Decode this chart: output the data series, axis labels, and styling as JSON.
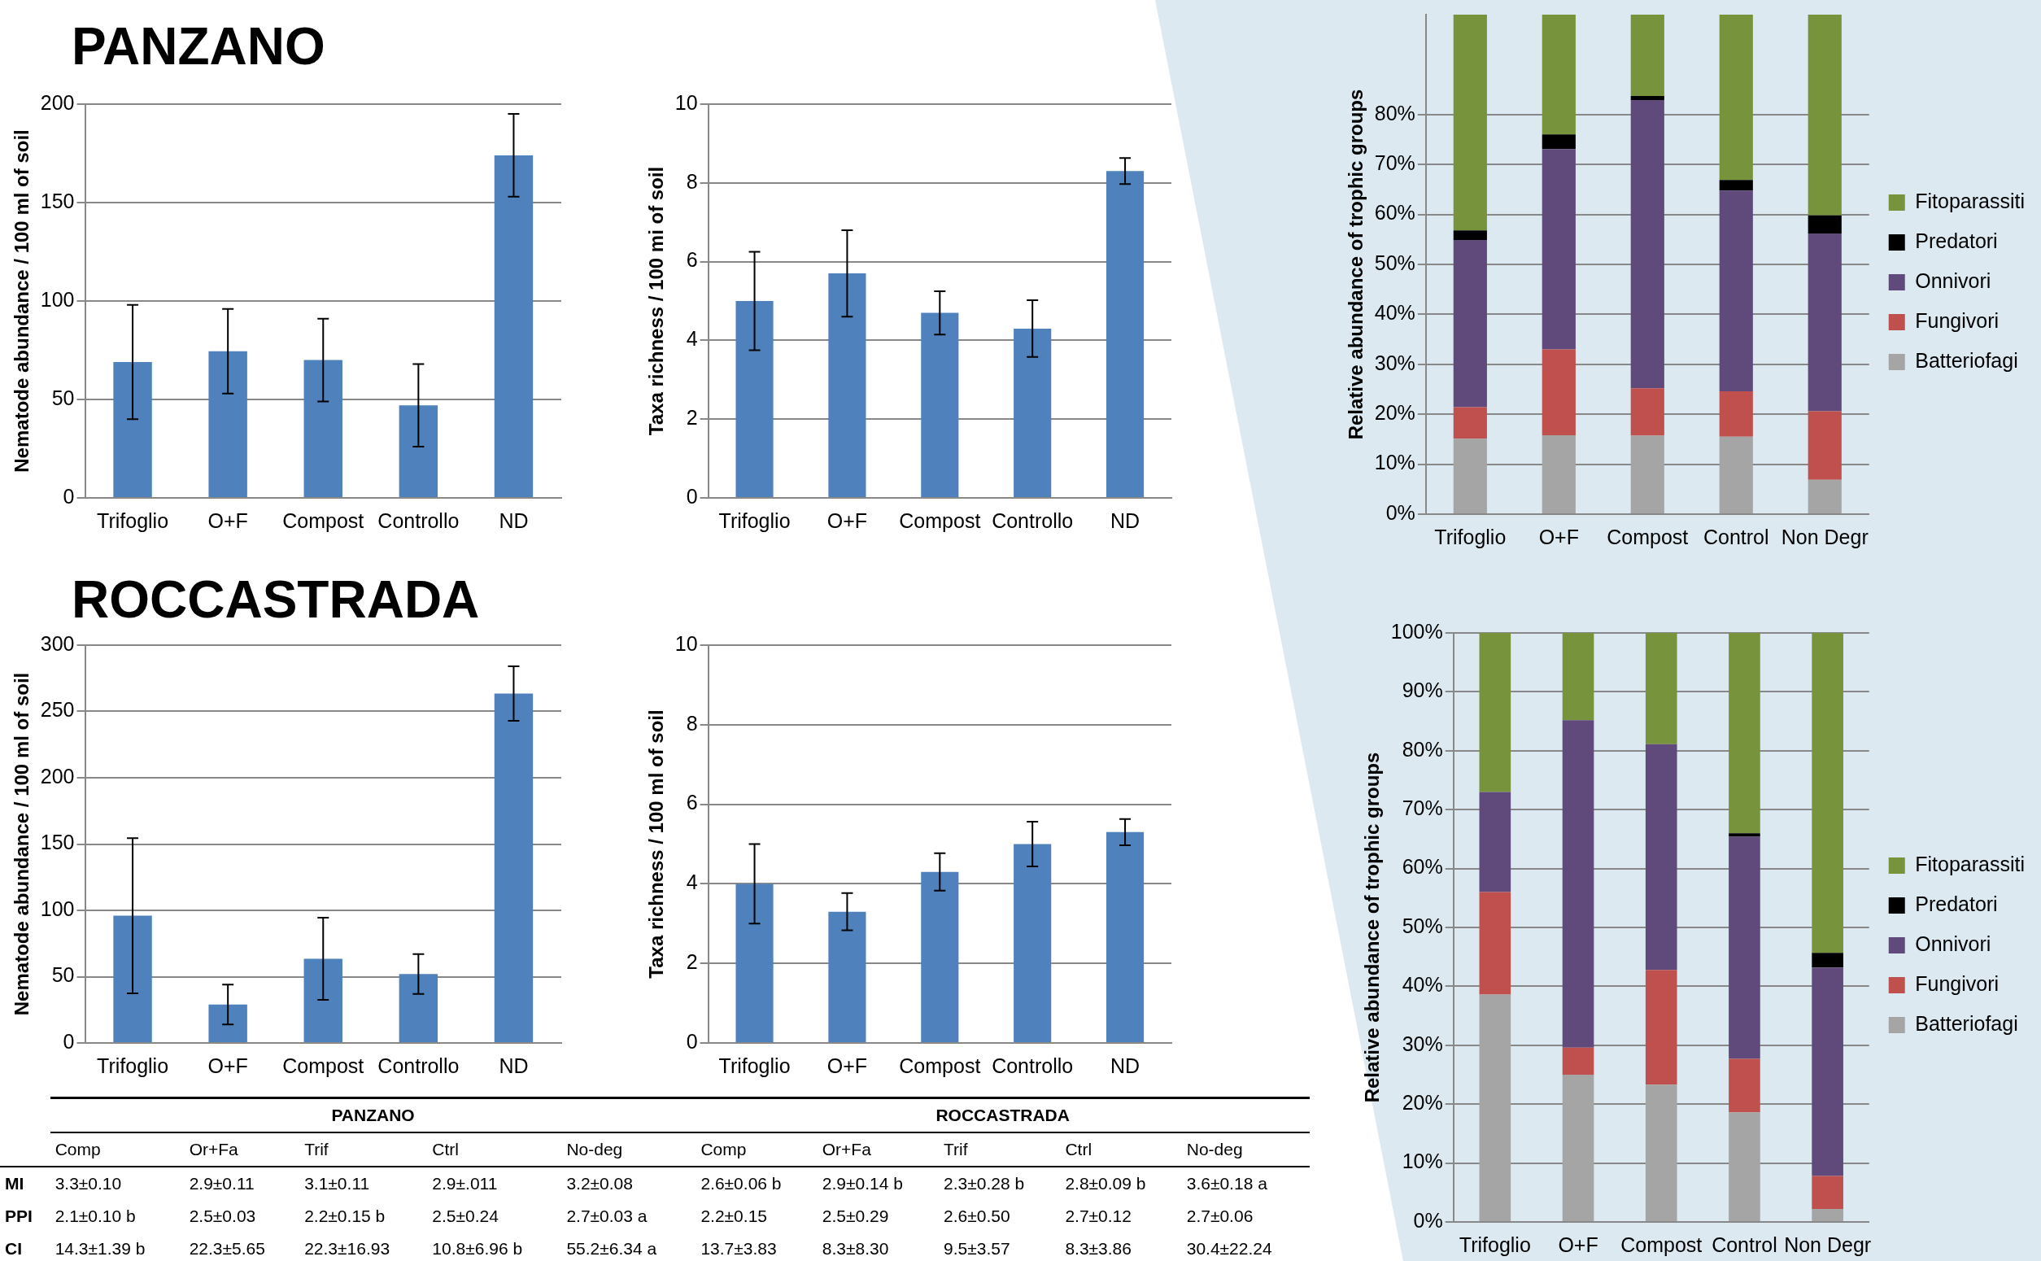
{
  "chart_data": [
    {
      "type": "bar",
      "title": "PANZANO",
      "ylabel": "Nematode abundance / 100 ml of soil",
      "categories": [
        "Trifoglio",
        "O+F",
        "Compost",
        "Controllo",
        "ND"
      ],
      "values": [
        69,
        74.5,
        70,
        47,
        174
      ],
      "errors": [
        29,
        21.5,
        21,
        21,
        21
      ],
      "color": "#4f81bd",
      "ylim": [
        0,
        200
      ],
      "yticks": [
        0,
        50,
        100,
        150,
        200
      ],
      "grid": "y",
      "legend": false
    },
    {
      "type": "bar",
      "ylabel": "Taxa richness / 100 mi of soil",
      "categories": [
        "Trifoglio",
        "O+F",
        "Compost",
        "Controllo",
        "ND"
      ],
      "values": [
        5.0,
        5.7,
        4.7,
        4.3,
        8.3
      ],
      "errors": [
        1.25,
        1.1,
        0.55,
        0.72,
        0.33
      ],
      "color": "#4f81bd",
      "ylim": [
        0,
        10
      ],
      "yticks": [
        0,
        2,
        4,
        6,
        8,
        10
      ],
      "grid": "y",
      "legend": false
    },
    {
      "type": "bar",
      "ylabel": "Relative abundance of trophic groups",
      "categories": [
        "Trifoglio",
        "O+F",
        "Compost",
        "Control",
        "Non Degr"
      ],
      "stacked": true,
      "series": [
        {
          "name": "Batteriofagi",
          "color": "#a5a5a5",
          "values": [
            15.1,
            15.8,
            15.7,
            15.5,
            6.9
          ]
        },
        {
          "name": "Fungivori",
          "color": "#c0504d",
          "values": [
            6.3,
            17.2,
            9.5,
            9.1,
            13.7
          ]
        },
        {
          "name": "Onnivori",
          "color": "#604a7b",
          "values": [
            33.5,
            40.1,
            57.7,
            40.2,
            35.6
          ]
        },
        {
          "name": "Predatori",
          "color": "#000000",
          "values": [
            1.9,
            2.9,
            0.8,
            2.1,
            3.6
          ]
        },
        {
          "name": "Fitoparassiti",
          "color": "#77933c",
          "values": [
            43.2,
            24.0,
            16.3,
            33.1,
            40.2
          ]
        }
      ],
      "ylim": [
        0,
        100
      ],
      "yticks": [
        {
          "value": 0,
          "label": "0%"
        },
        {
          "value": 10,
          "label": "10%"
        },
        {
          "value": 20,
          "label": "20%"
        },
        {
          "value": 30,
          "label": "30%"
        },
        {
          "value": 40,
          "label": "40%"
        },
        {
          "value": 50,
          "label": "50%"
        },
        {
          "value": 60,
          "label": "60%"
        },
        {
          "value": 70,
          "label": "70%"
        },
        {
          "value": 80,
          "label": "80%"
        }
      ],
      "grid": "y",
      "legend": "right"
    },
    {
      "type": "bar",
      "title": "ROCCASTRADA",
      "ylabel": "Nematode abundance / 100 ml of soil",
      "categories": [
        "Trifoglio",
        "O+F",
        "Compost",
        "Controllo",
        "ND"
      ],
      "values": [
        96,
        29,
        63.5,
        52,
        263.5
      ],
      "errors": [
        58.5,
        15,
        31,
        15,
        20.5
      ],
      "color": "#4f81bd",
      "ylim": [
        0,
        300
      ],
      "yticks": [
        0,
        50,
        100,
        150,
        200,
        250,
        300
      ],
      "grid": "y",
      "legend": false
    },
    {
      "type": "bar",
      "ylabel": "Taxa richness / 100 ml of soil",
      "categories": [
        "Trifoglio",
        "O+F",
        "Compost",
        "Controllo",
        "ND"
      ],
      "values": [
        4.0,
        3.3,
        4.3,
        5.0,
        5.3
      ],
      "errors": [
        1.0,
        0.47,
        0.47,
        0.56,
        0.33
      ],
      "color": "#4f81bd",
      "ylim": [
        0,
        10
      ],
      "yticks": [
        0,
        2,
        4,
        6,
        8,
        10
      ],
      "grid": "y",
      "legend": false
    },
    {
      "type": "bar",
      "ylabel": "Relative abundance of trophic groups",
      "categories": [
        "Trifoglio",
        "O+F",
        "Compost",
        "Control",
        "Non Degr"
      ],
      "stacked": true,
      "series": [
        {
          "name": "Batteriofagi",
          "color": "#a5a5a5",
          "values": [
            38.6,
            25.0,
            23.3,
            18.6,
            2.2
          ]
        },
        {
          "name": "Fungivori",
          "color": "#c0504d",
          "values": [
            17.4,
            4.6,
            19.5,
            9.1,
            5.6
          ]
        },
        {
          "name": "Onnivori",
          "color": "#604a7b",
          "values": [
            17.0,
            55.6,
            38.3,
            37.7,
            35.4
          ]
        },
        {
          "name": "Predatori",
          "color": "#000000",
          "values": [
            0,
            0,
            0,
            0.6,
            2.5
          ]
        },
        {
          "name": "Fitoparassiti",
          "color": "#77933c",
          "values": [
            27.0,
            14.8,
            18.9,
            34.0,
            54.3
          ]
        }
      ],
      "ylim": [
        0,
        100
      ],
      "yticks": [
        {
          "value": 0,
          "label": "0%"
        },
        {
          "value": 10,
          "label": "10%"
        },
        {
          "value": 20,
          "label": "20%"
        },
        {
          "value": 30,
          "label": "30%"
        },
        {
          "value": 40,
          "label": "40%"
        },
        {
          "value": 50,
          "label": "50%"
        },
        {
          "value": 60,
          "label": "60%"
        },
        {
          "value": 70,
          "label": "70%"
        },
        {
          "value": 80,
          "label": "80%"
        },
        {
          "value": 90,
          "label": "90%"
        },
        {
          "value": 100,
          "label": "100%"
        }
      ],
      "grid": "y",
      "legend": "right"
    },
    {
      "type": "other",
      "annotations": [
        "PANZANO",
        "ROCCASTRADA"
      ],
      "categories": [
        "Comp",
        "Or+Fa",
        "Trif",
        "Ctrl",
        "No-deg",
        "Comp",
        "Or+Fa",
        "Trif",
        "Ctrl",
        "No-deg"
      ],
      "y_categories": [
        "MI",
        "PPI",
        "CI"
      ],
      "cell_labels": [
        [
          "3.3±0.10",
          "2.9±0.11",
          "3.1±0.11",
          "2.9±.011",
          "3.2±0.08",
          "2.6±0.06 b",
          "2.9±0.14 b",
          "2.3±0.28 b",
          "2.8±0.09 b",
          "3.6±0.18 a"
        ],
        [
          "2.1±0.10 b",
          "2.5±0.03",
          "2.2±0.15 b",
          "2.5±0.24",
          "2.7±0.03 a",
          "2.2±0.15",
          "2.5±0.29",
          "2.6±0.50",
          "2.7±0.12",
          "2.7±0.06"
        ],
        [
          "14.3±1.39 b",
          "22.3±5.65",
          "22.3±16.93",
          "10.8±6.96 b",
          "55.2±6.34 a",
          "13.7±3.83",
          "8.3±8.30",
          "9.5±3.57",
          "8.3±3.86",
          "30.4±22.24"
        ]
      ]
    }
  ]
}
